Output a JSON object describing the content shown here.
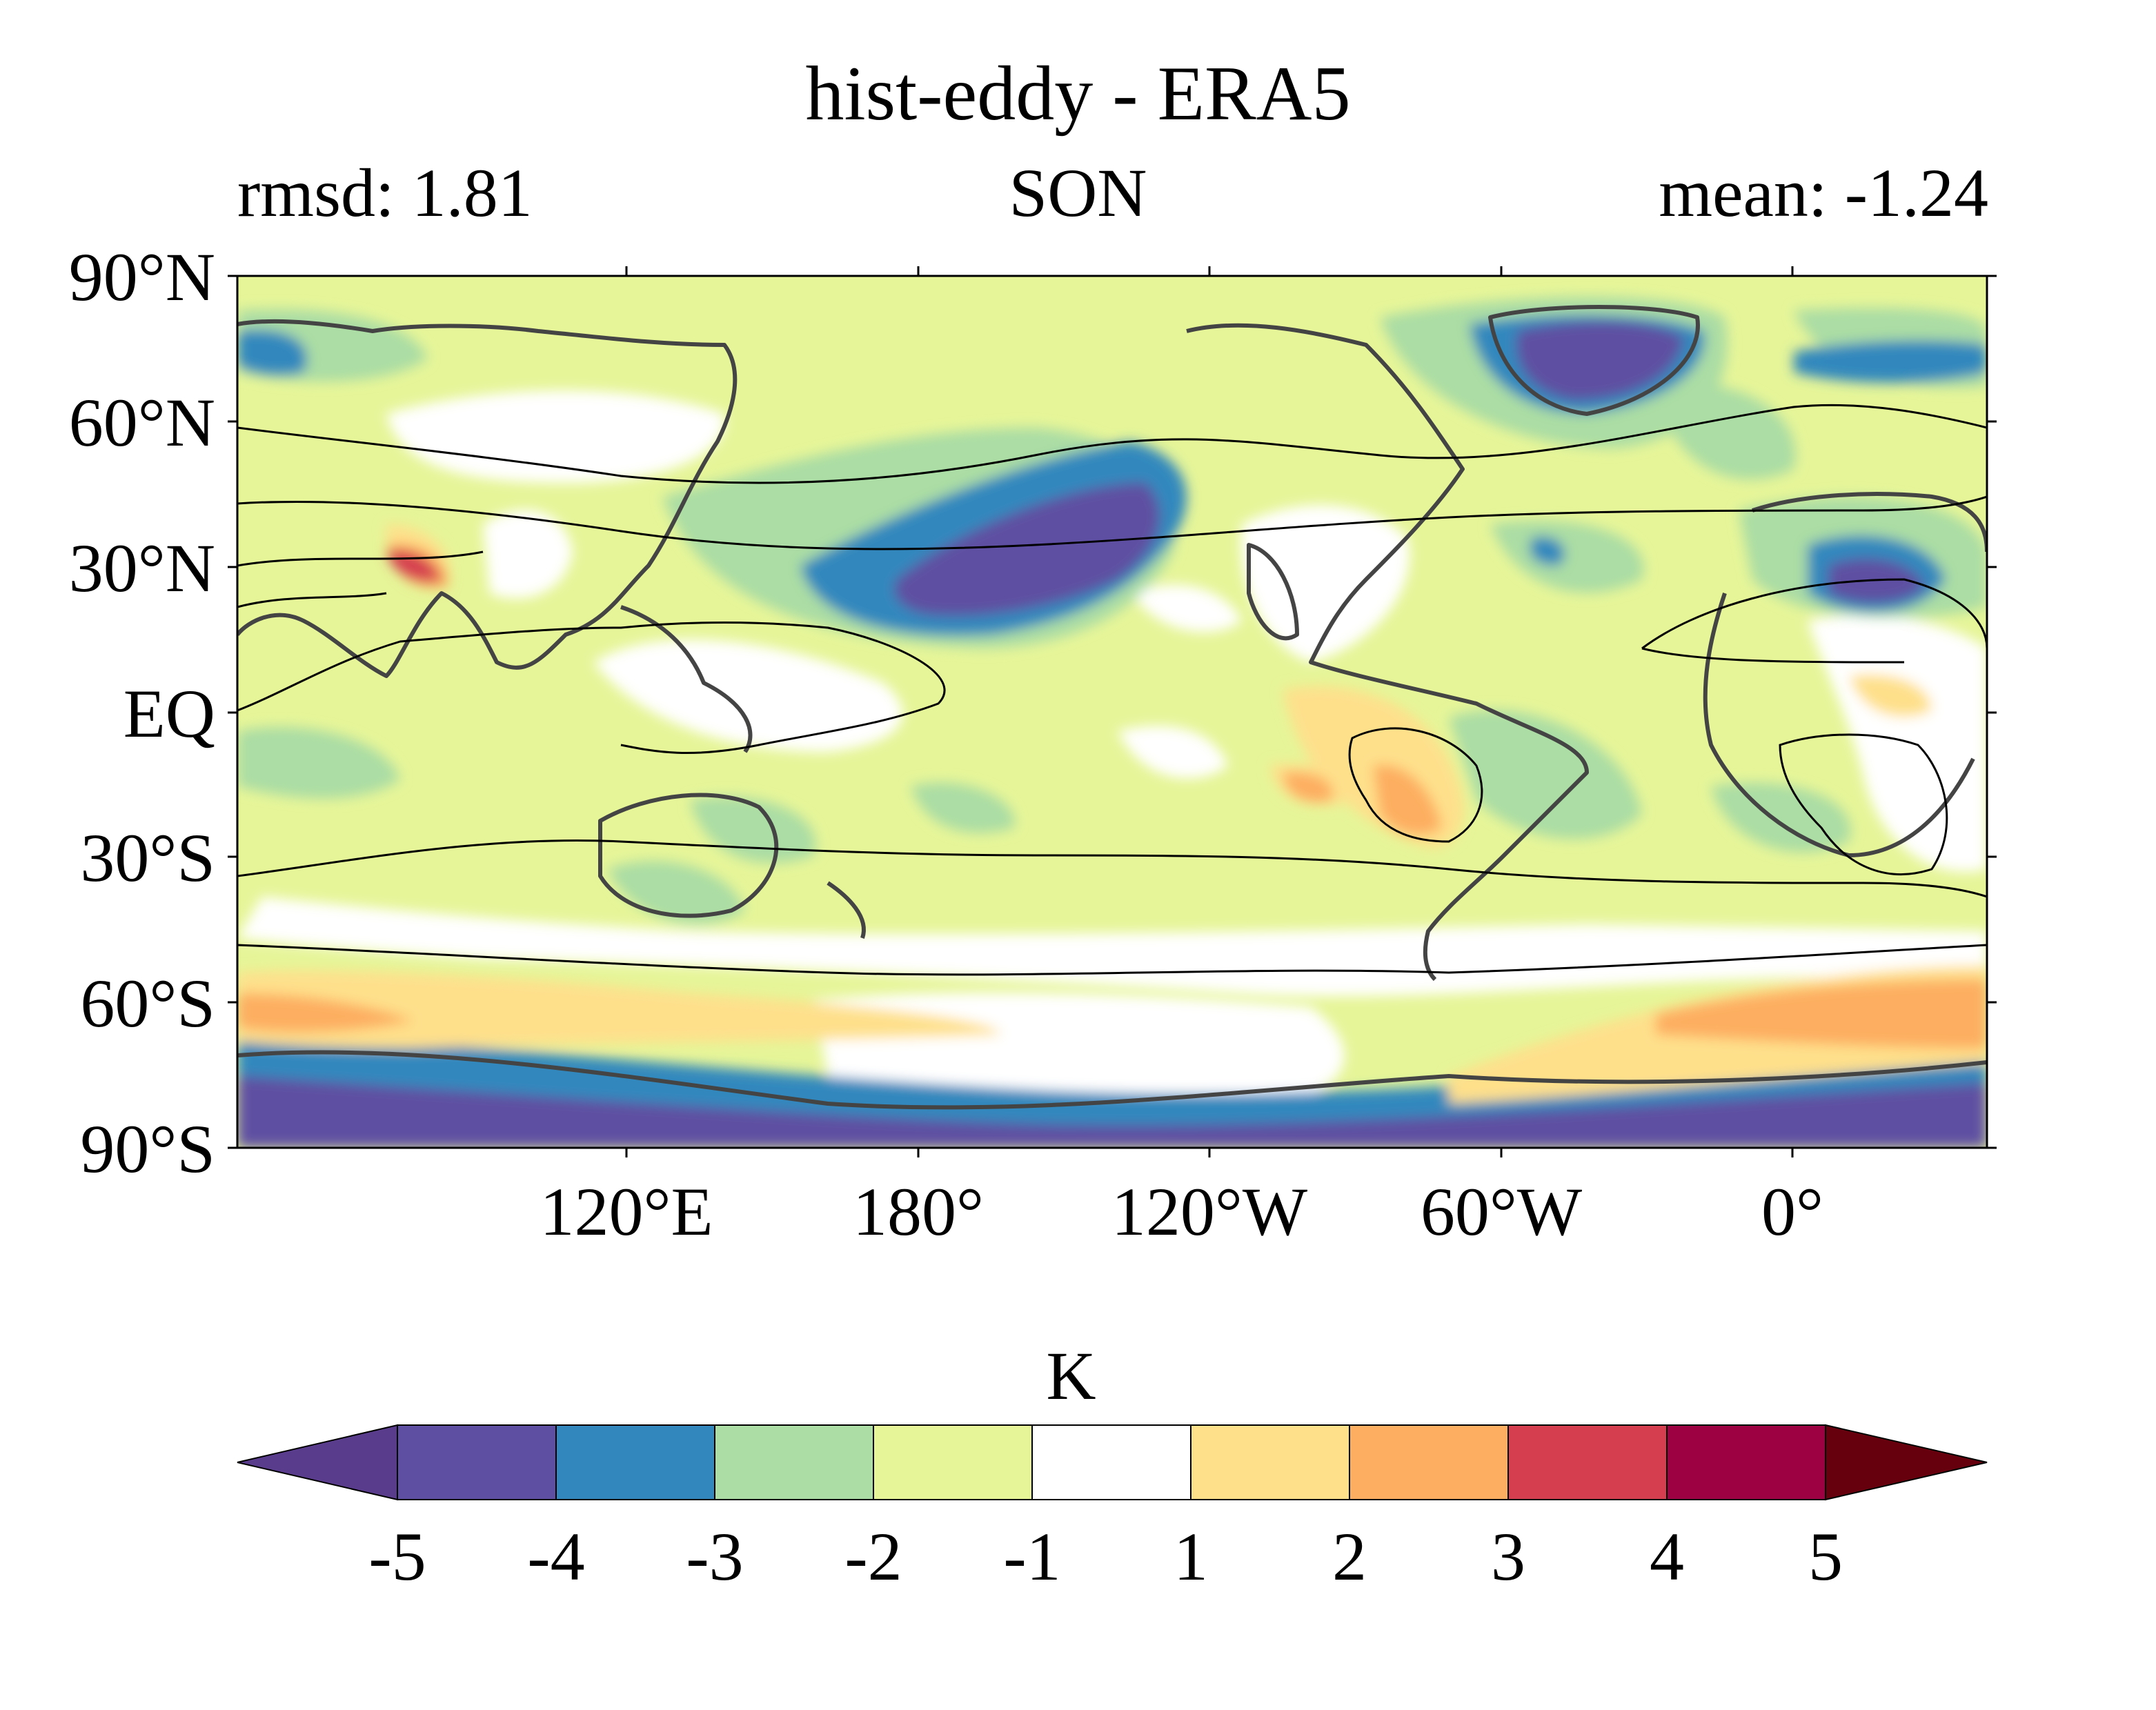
{
  "title": "hist-eddy - ERA5",
  "stats": {
    "rmsd": "rmsd: 1.81",
    "season": "SON",
    "mean": "mean: -1.24"
  },
  "map": {
    "lat_ticks": [
      "90°N",
      "60°N",
      "30°N",
      "EQ",
      "30°S",
      "60°S",
      "90°S"
    ],
    "lon_ticks": [
      "120°E",
      "180°",
      "120°W",
      "60°W",
      "0°"
    ],
    "lon_range": [
      40,
      400
    ],
    "lat_range": [
      -90,
      90
    ]
  },
  "colorbar": {
    "units": "K",
    "tick_labels": [
      "-5",
      "-4",
      "-3",
      "-2",
      "-1",
      "1",
      "2",
      "3",
      "4",
      "5"
    ],
    "levels": [
      -5,
      -4,
      -3,
      -2,
      -1,
      1,
      2,
      3,
      4,
      5
    ],
    "colors": [
      "#5e4fa2",
      "#3288bd",
      "#abdda4",
      "#e6f598",
      "#ffffff",
      "#fee08b",
      "#fdae61",
      "#d53e4f",
      "#9e0142"
    ],
    "under_color": "#5a3c8c",
    "over_color": "#67000d"
  }
}
